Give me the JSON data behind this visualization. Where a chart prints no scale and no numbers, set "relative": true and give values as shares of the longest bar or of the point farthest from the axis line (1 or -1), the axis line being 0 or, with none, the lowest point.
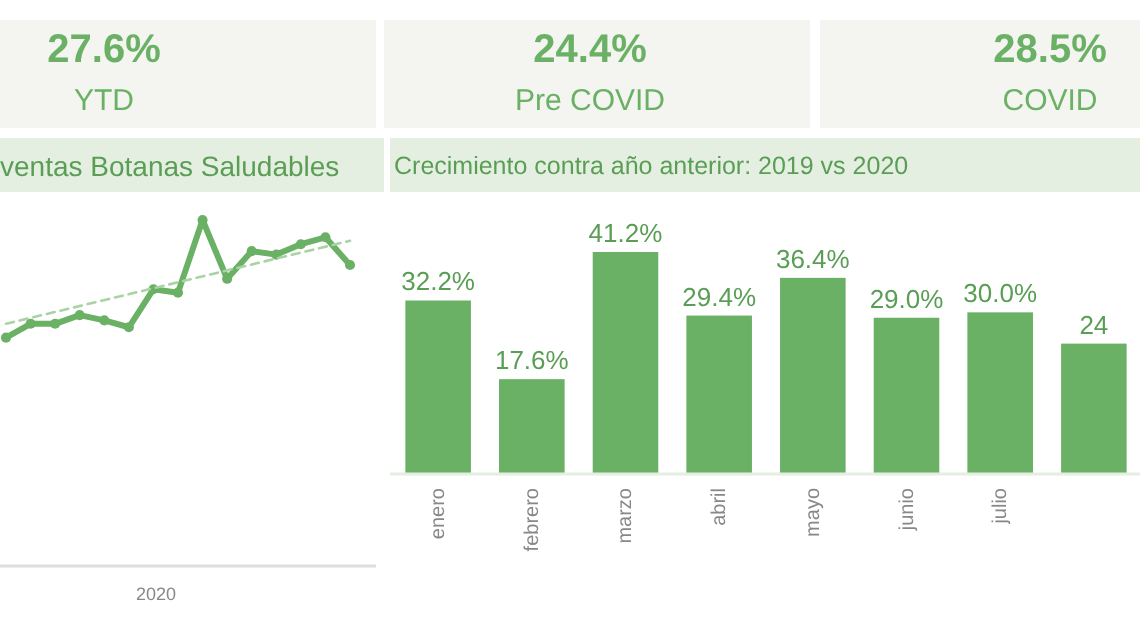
{
  "chart_data": [
    {
      "type": "other",
      "annotations": [
        "27.6%",
        "YTD",
        "24.4%",
        "Pre COVID",
        "28.5%",
        "COVID"
      ],
      "color": "#6ab165"
    },
    {
      "type": "line",
      "title": "ventas Botanas Saludables",
      "xlabel": "2020",
      "relative": true,
      "categories": [
        null,
        null,
        null,
        null,
        null,
        null,
        null,
        null,
        null,
        null,
        null,
        null,
        null,
        null,
        null
      ],
      "marker": "circle",
      "series": [
        {
          "type": "line",
          "color": "#6ab165",
          "values": [
            0.66,
            0.7,
            0.7,
            0.725,
            0.71,
            0.69,
            0.8,
            0.79,
            1,
            0.83,
            0.91,
            0.9,
            0.93,
            0.95,
            0.87
          ]
        },
        {
          "type": "line",
          "color": "#a9d3a5",
          "line_style": "dashed",
          "marker": "none",
          "values": [
            0.7,
            null,
            null,
            null,
            null,
            null,
            null,
            null,
            null,
            null,
            null,
            null,
            null,
            null,
            0.94
          ]
        }
      ]
    },
    {
      "type": "bar",
      "title": "Crecimiento contra año anterior: 2019 vs 2020",
      "categories": [
        "enero",
        "febrero",
        "marzo",
        "abril",
        "mayo",
        "junio",
        "julio",
        null
      ],
      "values": [
        32.2,
        17.6,
        41.2,
        29.4,
        36.4,
        29.0,
        30.0,
        24.2
      ],
      "value_labels": [
        "32.2%",
        "17.6%",
        "41.2%",
        "29.4%",
        "36.4%",
        "29.0%",
        "30.0%",
        "24"
      ],
      "color": "#6ab165"
    }
  ]
}
